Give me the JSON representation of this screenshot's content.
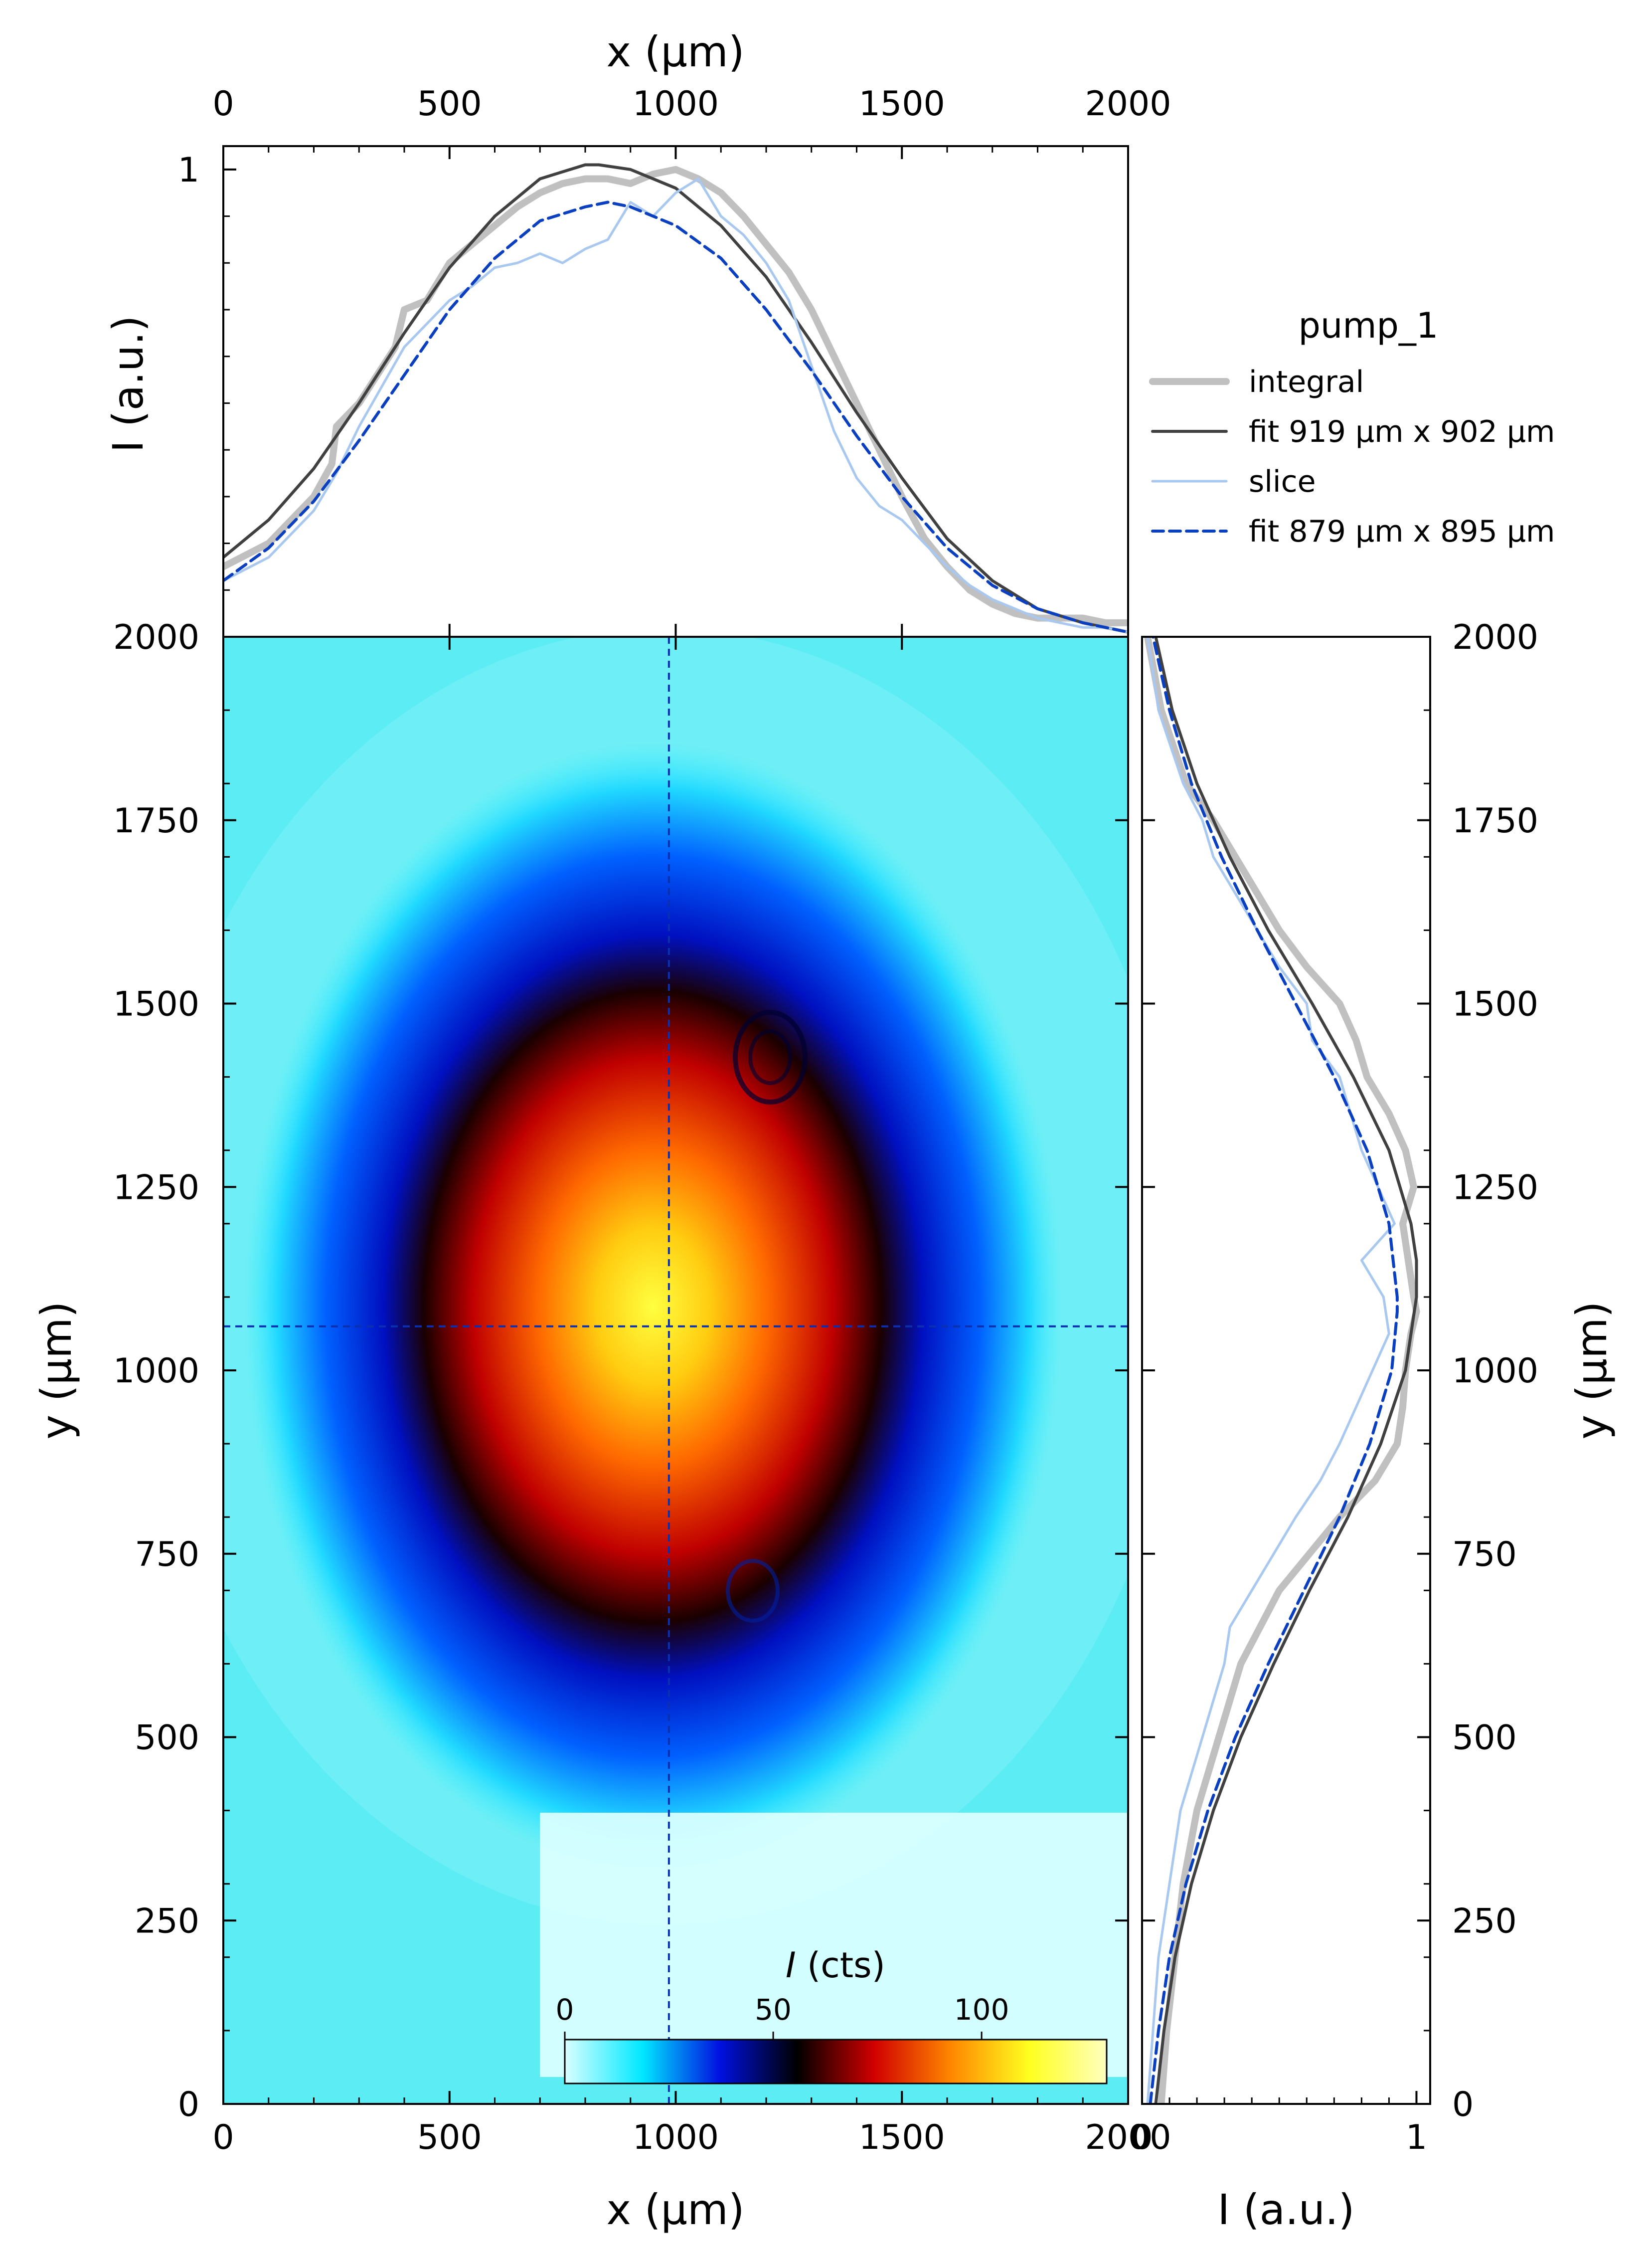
{
  "chart_data": [
    {
      "type": "heatmap",
      "name": "main",
      "xlabel": "x (μm)",
      "ylabel": "y (μm)",
      "xlim": [
        0,
        2000
      ],
      "ylim": [
        0,
        2000
      ],
      "x_ticks": [
        "0",
        "500",
        "1000",
        "1500",
        "2000"
      ],
      "y_ticks": [
        "0",
        "250",
        "500",
        "750",
        "1000",
        "1250",
        "1500",
        "1750",
        "2000"
      ],
      "crosshair": {
        "x": 985,
        "y": 1060
      },
      "colorbar": {
        "label_italic": "I",
        "label_rest": " (cts)",
        "range": [
          0,
          130
        ],
        "ticks": [
          "0",
          "50",
          "100"
        ],
        "tick_values": [
          0,
          50,
          100
        ],
        "colors": [
          "#d8ffff",
          "#00e8ff",
          "#0010e0",
          "#000000",
          "#d00000",
          "#ff8800",
          "#ffff20",
          "#ffffc0"
        ]
      },
      "beam": {
        "center_x": 880,
        "center_y": 1110,
        "peak_cts": 125
      }
    },
    {
      "type": "line",
      "name": "top-profile",
      "xlabel": "x (μm)",
      "ylabel": "I (a.u.)",
      "xlim": [
        0,
        2000
      ],
      "ylim": [
        0,
        1.05
      ],
      "y_ticks": [
        "1"
      ],
      "series": [
        {
          "name": "integral",
          "color": "#c0c0c0",
          "x": [
            0,
            100,
            200,
            240,
            250,
            300,
            380,
            400,
            450,
            500,
            550,
            600,
            650,
            700,
            750,
            800,
            850,
            900,
            950,
            1000,
            1050,
            1100,
            1150,
            1200,
            1250,
            1300,
            1350,
            1400,
            1450,
            1500,
            1550,
            1600,
            1650,
            1700,
            1750,
            1800,
            1850,
            1900,
            1950,
            2000
          ],
          "y": [
            0.15,
            0.2,
            0.3,
            0.37,
            0.45,
            0.5,
            0.62,
            0.7,
            0.72,
            0.8,
            0.84,
            0.88,
            0.92,
            0.95,
            0.97,
            0.98,
            0.98,
            0.97,
            0.99,
            1.0,
            0.98,
            0.95,
            0.9,
            0.84,
            0.78,
            0.7,
            0.6,
            0.5,
            0.4,
            0.3,
            0.21,
            0.15,
            0.1,
            0.07,
            0.05,
            0.04,
            0.04,
            0.04,
            0.03,
            0.03
          ]
        },
        {
          "name": "fit 919 μm x 902 μm",
          "color": "#404040",
          "x": [
            0,
            100,
            200,
            300,
            400,
            500,
            600,
            700,
            800,
            830,
            900,
            1000,
            1100,
            1200,
            1300,
            1400,
            1500,
            1600,
            1700,
            1800,
            1900,
            2000
          ],
          "y": [
            0.17,
            0.25,
            0.36,
            0.5,
            0.65,
            0.79,
            0.9,
            0.98,
            1.01,
            1.01,
            1.0,
            0.96,
            0.88,
            0.77,
            0.63,
            0.48,
            0.34,
            0.21,
            0.12,
            0.06,
            0.03,
            0.01
          ]
        },
        {
          "name": "slice",
          "color": "#a8c8f0",
          "x": [
            0,
            100,
            200,
            250,
            300,
            400,
            500,
            550,
            600,
            650,
            700,
            750,
            800,
            850,
            900,
            950,
            1000,
            1050,
            1100,
            1150,
            1200,
            1250,
            1300,
            1350,
            1400,
            1450,
            1500,
            1550,
            1600,
            1650,
            1700,
            1750,
            1800,
            1850,
            1900,
            1950,
            2000
          ],
          "y": [
            0.12,
            0.17,
            0.27,
            0.35,
            0.45,
            0.62,
            0.72,
            0.75,
            0.79,
            0.8,
            0.82,
            0.8,
            0.83,
            0.85,
            0.93,
            0.9,
            0.95,
            0.98,
            0.9,
            0.86,
            0.8,
            0.72,
            0.58,
            0.44,
            0.34,
            0.28,
            0.25,
            0.2,
            0.15,
            0.11,
            0.08,
            0.06,
            0.04,
            0.03,
            0.02,
            0.02,
            0.01
          ]
        },
        {
          "name": "fit 879 μm x 895 μm",
          "color": "#0a40c0",
          "dashed": true,
          "x": [
            0,
            100,
            200,
            300,
            400,
            500,
            600,
            700,
            800,
            850,
            900,
            1000,
            1100,
            1200,
            1300,
            1400,
            1500,
            1600,
            1700,
            1800,
            1900,
            2000
          ],
          "y": [
            0.12,
            0.19,
            0.29,
            0.42,
            0.56,
            0.7,
            0.81,
            0.89,
            0.92,
            0.93,
            0.92,
            0.88,
            0.81,
            0.7,
            0.57,
            0.43,
            0.3,
            0.19,
            0.11,
            0.06,
            0.03,
            0.01
          ]
        }
      ],
      "legend": {
        "title": "pump_1",
        "placement": "right"
      }
    },
    {
      "type": "line",
      "name": "right-profile",
      "xlabel": "I (a.u.)",
      "ylabel": "y (μm)",
      "xlim": [
        0,
        1.05
      ],
      "ylim": [
        0,
        2000
      ],
      "x_ticks": [
        "0",
        "1"
      ],
      "y_ticks": [
        "0",
        "250",
        "500",
        "750",
        "1000",
        "1250",
        "1500",
        "1750",
        "2000"
      ],
      "series": [
        {
          "name": "integral",
          "color": "#c0c0c0",
          "y": [
            0,
            100,
            200,
            300,
            400,
            500,
            600,
            700,
            800,
            850,
            900,
            950,
            1000,
            1050,
            1080,
            1100,
            1150,
            1200,
            1250,
            1300,
            1350,
            1400,
            1450,
            1500,
            1550,
            1600,
            1650,
            1700,
            1750,
            1800,
            1900,
            2000
          ],
          "x": [
            0.07,
            0.09,
            0.12,
            0.15,
            0.2,
            0.28,
            0.36,
            0.5,
            0.72,
            0.85,
            0.93,
            0.95,
            0.96,
            0.98,
            1.0,
            0.99,
            0.97,
            0.95,
            0.99,
            0.96,
            0.9,
            0.82,
            0.78,
            0.72,
            0.6,
            0.5,
            0.42,
            0.34,
            0.26,
            0.16,
            0.07,
            0.02
          ]
        },
        {
          "name": "fit 919 μm x 902 μm",
          "color": "#404040",
          "y": [
            0,
            100,
            200,
            300,
            400,
            500,
            600,
            700,
            800,
            900,
            1000,
            1100,
            1150,
            1200,
            1300,
            1400,
            1500,
            1600,
            1700,
            1800,
            1900,
            2000
          ],
          "x": [
            0.05,
            0.08,
            0.12,
            0.18,
            0.26,
            0.36,
            0.48,
            0.61,
            0.75,
            0.87,
            0.96,
            1.0,
            1.0,
            0.98,
            0.9,
            0.77,
            0.62,
            0.46,
            0.32,
            0.2,
            0.11,
            0.05
          ]
        },
        {
          "name": "slice",
          "color": "#a8c8f0",
          "y": [
            0,
            100,
            200,
            300,
            400,
            500,
            600,
            650,
            700,
            750,
            800,
            850,
            900,
            950,
            1000,
            1050,
            1100,
            1150,
            1200,
            1250,
            1300,
            1350,
            1400,
            1450,
            1500,
            1550,
            1600,
            1650,
            1700,
            1750,
            1800,
            1900,
            2000
          ],
          "x": [
            0.02,
            0.04,
            0.06,
            0.1,
            0.14,
            0.22,
            0.3,
            0.32,
            0.4,
            0.48,
            0.56,
            0.65,
            0.72,
            0.78,
            0.84,
            0.9,
            0.88,
            0.8,
            0.92,
            0.86,
            0.8,
            0.76,
            0.72,
            0.62,
            0.6,
            0.5,
            0.42,
            0.34,
            0.26,
            0.22,
            0.15,
            0.06,
            0.02
          ]
        },
        {
          "name": "fit 879 μm x 895 μm",
          "color": "#0a40c0",
          "dashed": true,
          "y": [
            0,
            100,
            200,
            300,
            400,
            500,
            600,
            700,
            800,
            900,
            1000,
            1080,
            1100,
            1200,
            1300,
            1400,
            1500,
            1600,
            1700,
            1800,
            1900,
            2000
          ],
          "x": [
            0.03,
            0.06,
            0.1,
            0.16,
            0.24,
            0.34,
            0.46,
            0.59,
            0.72,
            0.83,
            0.91,
            0.93,
            0.93,
            0.9,
            0.82,
            0.7,
            0.56,
            0.42,
            0.29,
            0.18,
            0.1,
            0.04
          ]
        }
      ]
    }
  ]
}
